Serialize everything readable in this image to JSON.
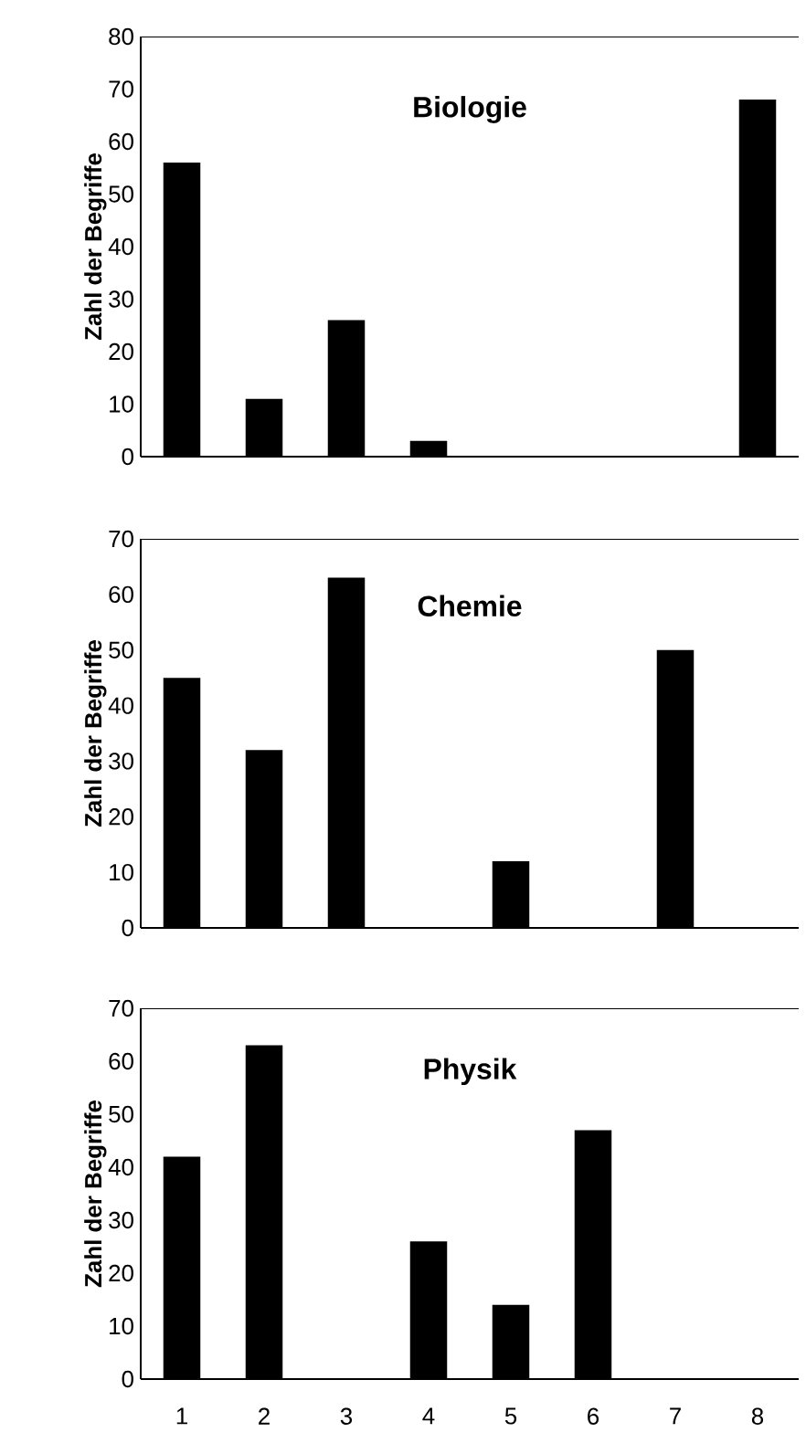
{
  "chart_data": [
    {
      "type": "bar",
      "title": "Biologie",
      "ylabel": "Zahl der Begriffe",
      "categories": [
        "1",
        "2",
        "3",
        "4",
        "5",
        "6",
        "7",
        "8"
      ],
      "values": [
        56,
        11,
        26,
        3,
        0,
        0,
        0,
        68
      ],
      "color": "#000000",
      "ylim": [
        0,
        80
      ],
      "yticks": [
        0,
        10,
        20,
        30,
        40,
        50,
        60,
        70,
        80
      ],
      "tick_labels": "y"
    },
    {
      "type": "bar",
      "title": "Chemie",
      "ylabel": "Zahl der Begriffe",
      "categories": [
        "1",
        "2",
        "3",
        "4",
        "5",
        "6",
        "7",
        "8"
      ],
      "values": [
        45,
        32,
        63,
        0,
        12,
        0,
        50,
        0
      ],
      "color": "#000000",
      "ylim": [
        0,
        70
      ],
      "yticks": [
        0,
        10,
        20,
        30,
        40,
        50,
        60,
        70
      ],
      "tick_labels": "y"
    },
    {
      "type": "bar",
      "title": "Physik",
      "ylabel": "Zahl der Begriffe",
      "categories": [
        "1",
        "2",
        "3",
        "4",
        "5",
        "6",
        "7",
        "8"
      ],
      "values": [
        42,
        63,
        0,
        26,
        14,
        47,
        0,
        0
      ],
      "color": "#000000",
      "ylim": [
        0,
        70
      ],
      "yticks": [
        0,
        10,
        20,
        30,
        40,
        50,
        60,
        70
      ]
    }
  ]
}
